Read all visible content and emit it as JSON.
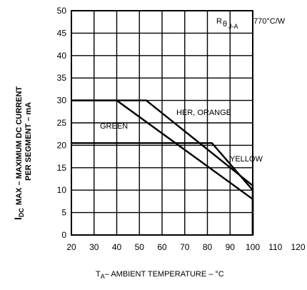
{
  "chart_data": {
    "type": "line",
    "xlim": [
      20,
      120
    ],
    "ylim": [
      0,
      50
    ],
    "x_ticks": [
      "20",
      "30",
      "40",
      "50",
      "60",
      "70",
      "80",
      "90",
      "100",
      "110",
      "120"
    ],
    "y_ticks": [
      "0",
      "5",
      "10",
      "15",
      "20",
      "25",
      "30",
      "35",
      "40",
      "45",
      "50"
    ],
    "grid": true,
    "xlabel_main": "T",
    "xlabel_sub": "A",
    "xlabel_rest": "– AMBIENT TEMPERATURE – °C",
    "ylabel_main": "I",
    "ylabel_sub": "DC",
    "ylabel_line1": "MAX – MAXIMUM DC CURRENT",
    "ylabel_line2": "PER SEGMENT – mA",
    "annotation_r": "R",
    "annotation_theta": "θ",
    "annotation_sub": "J-A",
    "annotation_value": "770°C/W",
    "series": [
      {
        "name": "HER, ORANGE",
        "x": [
          20,
          53,
          100,
          100
        ],
        "y": [
          30,
          30,
          11,
          0
        ]
      },
      {
        "name": "GREEN",
        "x": [
          20,
          40,
          100,
          100
        ],
        "y": [
          30,
          30,
          8,
          0
        ]
      },
      {
        "name": "YELLOW",
        "x": [
          20,
          82,
          100,
          100
        ],
        "y": [
          20.5,
          20.5,
          10,
          0
        ]
      }
    ]
  }
}
